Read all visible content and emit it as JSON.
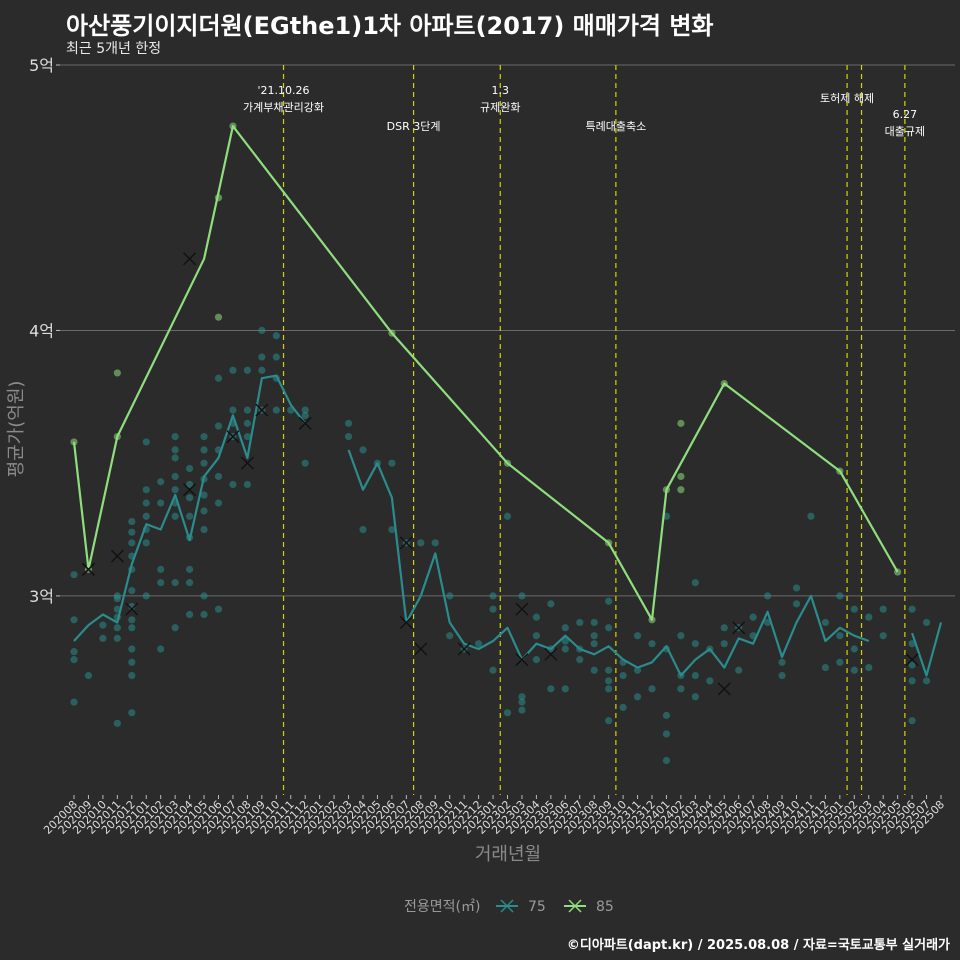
{
  "chart_data": {
    "type": "line",
    "title": "아산풍기이지더원(EGthe1)1차 아파트(2017) 매매가격 변화",
    "subtitle": "최근 5개년 한정",
    "xlabel": "거래년월",
    "ylabel": "평균가(억원)",
    "caption": "©디아파트(dapt.kr) / 2025.08.08 / 자료=국토교통부 실거래가",
    "legend_title": "전용면적(㎡)",
    "legend_position": "bottom",
    "grid": true,
    "ylim": [
      2.25,
      5.0
    ],
    "y_ticks": [
      {
        "v": 3,
        "label": "3억"
      },
      {
        "v": 4,
        "label": "4억"
      },
      {
        "v": 5,
        "label": "5억"
      }
    ],
    "categories": [
      "202008",
      "202009",
      "202010",
      "202011",
      "202012",
      "202101",
      "202102",
      "202103",
      "202104",
      "202105",
      "202106",
      "202107",
      "202108",
      "202109",
      "202110",
      "202111",
      "202112",
      "202201",
      "202202",
      "202203",
      "202204",
      "202205",
      "202206",
      "202207",
      "202208",
      "202209",
      "202210",
      "202211",
      "202212",
      "202301",
      "202302",
      "202303",
      "202304",
      "202305",
      "202306",
      "202307",
      "202308",
      "202309",
      "202310",
      "202311",
      "202312",
      "202401",
      "202402",
      "202403",
      "202404",
      "202405",
      "202406",
      "202407",
      "202408",
      "202409",
      "202410",
      "202411",
      "202412",
      "202501",
      "202502",
      "202503",
      "202504",
      "202505",
      "202506",
      "202507",
      "202508"
    ],
    "events": [
      {
        "x": 14.5,
        "lines": [
          "'21.10.26",
          "가계부채관리강화"
        ],
        "level": 0
      },
      {
        "x": 23.5,
        "lines": [
          "DSR 3단계"
        ],
        "level": 1
      },
      {
        "x": 29.5,
        "lines": [
          "1.3",
          "규제완화"
        ],
        "level": 0
      },
      {
        "x": 37.5,
        "lines": [
          "특례대출축소"
        ],
        "level": 1
      },
      {
        "x": 53.5,
        "lines": [
          "토허제 해제"
        ],
        "level": 0
      },
      {
        "x": 54.5,
        "lines": [],
        "level": 0
      },
      {
        "x": 57.5,
        "lines": [
          "6.27",
          "대출규제"
        ],
        "level": 1
      }
    ],
    "series": [
      {
        "name": "75",
        "color": "#2a8c8c",
        "points": [
          [
            0,
            2.83
          ],
          [
            1,
            2.89
          ],
          [
            2,
            2.93
          ],
          [
            3,
            2.9
          ],
          [
            4,
            3.12
          ],
          [
            5,
            3.27
          ],
          [
            6,
            3.25
          ],
          [
            7,
            3.38
          ],
          [
            8,
            3.21
          ],
          [
            9,
            3.45
          ],
          [
            10,
            3.52
          ],
          [
            11,
            3.68
          ],
          [
            12,
            3.52
          ],
          [
            13,
            3.82
          ],
          [
            14,
            3.83
          ],
          [
            15,
            3.72
          ],
          [
            16,
            3.65
          ],
          [
            19,
            3.55
          ],
          [
            20,
            3.4
          ],
          [
            21,
            3.5
          ],
          [
            22,
            3.37
          ],
          [
            23,
            2.9
          ],
          [
            24,
            3.0
          ],
          [
            25,
            3.16
          ],
          [
            26,
            2.9
          ],
          [
            27,
            2.82
          ],
          [
            28,
            2.8
          ],
          [
            29,
            2.83
          ],
          [
            30,
            2.88
          ],
          [
            31,
            2.76
          ],
          [
            32,
            2.82
          ],
          [
            33,
            2.8
          ],
          [
            34,
            2.85
          ],
          [
            35,
            2.8
          ],
          [
            36,
            2.78
          ],
          [
            37,
            2.81
          ],
          [
            38,
            2.76
          ],
          [
            39,
            2.73
          ],
          [
            40,
            2.75
          ],
          [
            41,
            2.81
          ],
          [
            42,
            2.7
          ],
          [
            43,
            2.76
          ],
          [
            44,
            2.8
          ],
          [
            45,
            2.73
          ],
          [
            46,
            2.84
          ],
          [
            47,
            2.82
          ],
          [
            48,
            2.94
          ],
          [
            49,
            2.77
          ],
          [
            50,
            2.9
          ],
          [
            51,
            3.0
          ],
          [
            52,
            2.83
          ],
          [
            53,
            2.88
          ],
          [
            54,
            2.85
          ],
          [
            55,
            2.83
          ],
          [
            58,
            2.86
          ],
          [
            59,
            2.7
          ],
          [
            60,
            2.9
          ]
        ],
        "scatter": [
          [
            0,
            3.08
          ],
          [
            0,
            2.91
          ],
          [
            0,
            2.79
          ],
          [
            0,
            2.76
          ],
          [
            0,
            2.6
          ],
          [
            1,
            2.7
          ],
          [
            2,
            2.89
          ],
          [
            2,
            2.84
          ],
          [
            3,
            2.95
          ],
          [
            3,
            2.92
          ],
          [
            3,
            2.88
          ],
          [
            3,
            2.84
          ],
          [
            3,
            2.52
          ],
          [
            3,
            3.0
          ],
          [
            3,
            2.99
          ],
          [
            4,
            3.28
          ],
          [
            4,
            3.24
          ],
          [
            4,
            3.2
          ],
          [
            4,
            3.15
          ],
          [
            4,
            3.1
          ],
          [
            4,
            3.02
          ],
          [
            4,
            2.96
          ],
          [
            4,
            2.91
          ],
          [
            4,
            2.88
          ],
          [
            4,
            2.8
          ],
          [
            4,
            2.75
          ],
          [
            4,
            2.7
          ],
          [
            4,
            2.56
          ],
          [
            5,
            3.4
          ],
          [
            5,
            3.35
          ],
          [
            5,
            3.3
          ],
          [
            5,
            3.25
          ],
          [
            5,
            3.2
          ],
          [
            5,
            3.0
          ],
          [
            5,
            3.58
          ],
          [
            6,
            3.43
          ],
          [
            6,
            3.35
          ],
          [
            6,
            3.1
          ],
          [
            6,
            3.05
          ],
          [
            6,
            2.8
          ],
          [
            7,
            3.6
          ],
          [
            7,
            3.55
          ],
          [
            7,
            3.52
          ],
          [
            7,
            3.45
          ],
          [
            7,
            3.4
          ],
          [
            7,
            3.35
          ],
          [
            7,
            3.3
          ],
          [
            7,
            3.05
          ],
          [
            7,
            2.88
          ],
          [
            8,
            3.48
          ],
          [
            8,
            3.42
          ],
          [
            8,
            3.37
          ],
          [
            8,
            3.3
          ],
          [
            8,
            3.22
          ],
          [
            8,
            3.1
          ],
          [
            8,
            3.05
          ],
          [
            8,
            2.93
          ],
          [
            9,
            3.6
          ],
          [
            9,
            3.55
          ],
          [
            9,
            3.5
          ],
          [
            9,
            3.44
          ],
          [
            9,
            3.38
          ],
          [
            9,
            3.32
          ],
          [
            9,
            3.25
          ],
          [
            9,
            3.0
          ],
          [
            9,
            2.93
          ],
          [
            10,
            3.82
          ],
          [
            10,
            3.64
          ],
          [
            10,
            3.55
          ],
          [
            10,
            3.45
          ],
          [
            10,
            3.35
          ],
          [
            10,
            2.95
          ],
          [
            11,
            3.85
          ],
          [
            11,
            3.7
          ],
          [
            11,
            3.65
          ],
          [
            11,
            3.6
          ],
          [
            11,
            3.42
          ],
          [
            12,
            3.85
          ],
          [
            12,
            3.7
          ],
          [
            12,
            3.65
          ],
          [
            12,
            3.6
          ],
          [
            12,
            3.42
          ],
          [
            13,
            4.0
          ],
          [
            13,
            3.9
          ],
          [
            13,
            3.85
          ],
          [
            13,
            3.7
          ],
          [
            14,
            3.98
          ],
          [
            14,
            3.9
          ],
          [
            14,
            3.82
          ],
          [
            14,
            3.7
          ],
          [
            15,
            3.7
          ],
          [
            16,
            3.7
          ],
          [
            16,
            3.68
          ],
          [
            16,
            3.5
          ],
          [
            19,
            3.65
          ],
          [
            19,
            3.6
          ],
          [
            20,
            3.55
          ],
          [
            20,
            3.25
          ],
          [
            21,
            3.5
          ],
          [
            22,
            3.5
          ],
          [
            22,
            3.25
          ],
          [
            23,
            3.2
          ],
          [
            24,
            3.2
          ],
          [
            25,
            3.2
          ],
          [
            26,
            3.0
          ],
          [
            26,
            2.85
          ],
          [
            27,
            2.8
          ],
          [
            28,
            2.82
          ],
          [
            29,
            2.95
          ],
          [
            29,
            2.72
          ],
          [
            29,
            3.0
          ],
          [
            30,
            3.3
          ],
          [
            30,
            2.56
          ],
          [
            31,
            3.0
          ],
          [
            31,
            2.62
          ],
          [
            31,
            2.57
          ],
          [
            31,
            2.6
          ],
          [
            32,
            2.92
          ],
          [
            32,
            2.85
          ],
          [
            32,
            2.76
          ],
          [
            33,
            2.97
          ],
          [
            33,
            2.8
          ],
          [
            33,
            2.65
          ],
          [
            34,
            2.88
          ],
          [
            34,
            2.83
          ],
          [
            34,
            2.8
          ],
          [
            34,
            2.65
          ],
          [
            35,
            2.9
          ],
          [
            35,
            2.8
          ],
          [
            35,
            2.76
          ],
          [
            36,
            2.9
          ],
          [
            36,
            2.85
          ],
          [
            36,
            2.82
          ],
          [
            36,
            2.72
          ],
          [
            37,
            2.98
          ],
          [
            37,
            2.88
          ],
          [
            37,
            2.72
          ],
          [
            37,
            2.68
          ],
          [
            37,
            2.65
          ],
          [
            37,
            2.53
          ],
          [
            38,
            2.75
          ],
          [
            38,
            2.7
          ],
          [
            38,
            2.58
          ],
          [
            39,
            2.85
          ],
          [
            39,
            2.72
          ],
          [
            39,
            2.62
          ],
          [
            40,
            2.82
          ],
          [
            40,
            2.65
          ],
          [
            41,
            2.8
          ],
          [
            41,
            2.55
          ],
          [
            41,
            2.48
          ],
          [
            41,
            3.3
          ],
          [
            41,
            2.38
          ],
          [
            42,
            2.85
          ],
          [
            42,
            2.7
          ],
          [
            42,
            2.65
          ],
          [
            43,
            3.05
          ],
          [
            43,
            2.82
          ],
          [
            43,
            2.7
          ],
          [
            43,
            2.62
          ],
          [
            44,
            2.8
          ],
          [
            44,
            2.68
          ],
          [
            45,
            2.88
          ],
          [
            45,
            2.82
          ],
          [
            46,
            2.88
          ],
          [
            46,
            2.72
          ],
          [
            47,
            2.92
          ],
          [
            47,
            2.85
          ],
          [
            48,
            3.0
          ],
          [
            48,
            2.9
          ],
          [
            49,
            2.75
          ],
          [
            49,
            2.7
          ],
          [
            50,
            3.03
          ],
          [
            50,
            2.97
          ],
          [
            51,
            3.3
          ],
          [
            52,
            2.9
          ],
          [
            52,
            2.73
          ],
          [
            53,
            3.0
          ],
          [
            53,
            2.85
          ],
          [
            53,
            2.75
          ],
          [
            54,
            2.95
          ],
          [
            54,
            2.8
          ],
          [
            54,
            2.72
          ],
          [
            55,
            2.92
          ],
          [
            55,
            2.73
          ],
          [
            56,
            2.95
          ],
          [
            56,
            2.85
          ],
          [
            58,
            2.95
          ],
          [
            58,
            2.82
          ],
          [
            58,
            2.74
          ],
          [
            58,
            2.68
          ],
          [
            58,
            2.53
          ],
          [
            59,
            2.9
          ],
          [
            59,
            2.68
          ]
        ],
        "x_marks": [
          [
            1,
            3.1
          ],
          [
            3,
            3.15
          ],
          [
            4,
            2.95
          ],
          [
            8,
            3.4
          ],
          [
            11,
            3.6
          ],
          [
            12,
            3.5
          ],
          [
            13,
            3.7
          ],
          [
            16,
            3.65
          ],
          [
            23,
            3.2
          ],
          [
            23,
            2.9
          ],
          [
            24,
            2.8
          ],
          [
            27,
            2.8
          ],
          [
            31,
            2.95
          ],
          [
            31,
            2.76
          ],
          [
            33,
            2.78
          ],
          [
            45,
            2.65
          ],
          [
            46,
            2.88
          ],
          [
            58,
            2.76
          ]
        ]
      },
      {
        "name": "85",
        "color": "#8fde7e",
        "points": [
          [
            0,
            3.58
          ],
          [
            1,
            3.1
          ],
          [
            3,
            3.6
          ],
          [
            9,
            4.27
          ],
          [
            11,
            4.77
          ],
          [
            22,
            3.99
          ],
          [
            30,
            3.5
          ],
          [
            37,
            3.2
          ],
          [
            40,
            2.91
          ],
          [
            41,
            3.4
          ],
          [
            45,
            3.8
          ],
          [
            53,
            3.47
          ],
          [
            57,
            3.09
          ]
        ],
        "scatter": [
          [
            0,
            3.58
          ],
          [
            1,
            3.1
          ],
          [
            3,
            3.84
          ],
          [
            3,
            3.6
          ],
          [
            10,
            4.5
          ],
          [
            10,
            4.05
          ],
          [
            11,
            4.77
          ],
          [
            22,
            3.99
          ],
          [
            30,
            3.5
          ],
          [
            37,
            3.2
          ],
          [
            40,
            2.91
          ],
          [
            41,
            3.4
          ],
          [
            42,
            3.65
          ],
          [
            42,
            3.45
          ],
          [
            42,
            3.4
          ],
          [
            45,
            3.8
          ],
          [
            53,
            3.47
          ],
          [
            57,
            3.09
          ]
        ],
        "x_marks": [
          [
            1,
            3.1
          ],
          [
            8,
            4.27
          ]
        ]
      }
    ]
  }
}
